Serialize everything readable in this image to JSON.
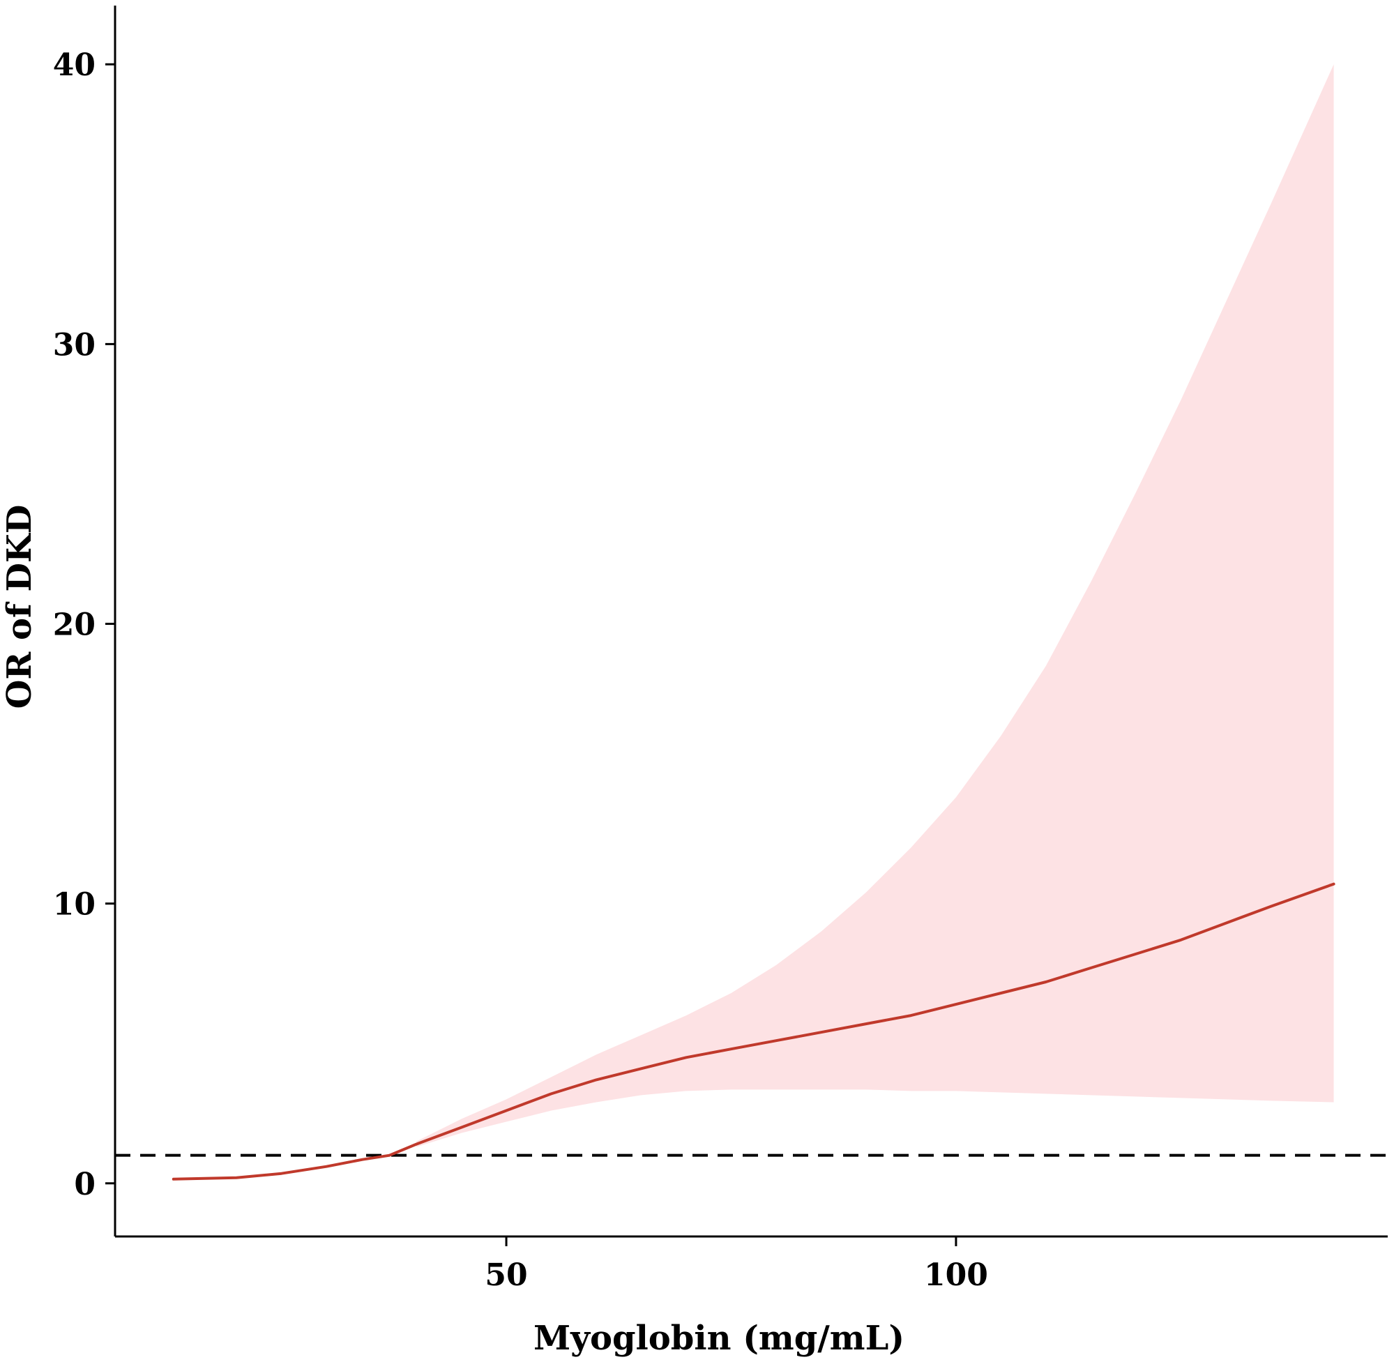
{
  "chart_data": {
    "type": "line",
    "xlabel": "Myoglobin (mg/mL)",
    "ylabel": "OR of DKD",
    "x_ticks": [
      50,
      100
    ],
    "y_ticks": [
      0,
      10,
      20,
      30,
      40
    ],
    "xlim": [
      6.5,
      148
    ],
    "ylim": [
      -1.9,
      42.1
    ],
    "grid": false,
    "legend": "none",
    "reference_line": {
      "y": 1,
      "style": "dashed",
      "color": "#000000"
    },
    "series": [
      {
        "x": [
          13,
          20,
          25,
          30,
          34,
          37,
          40,
          45,
          50,
          55,
          60,
          65,
          70,
          75,
          80,
          85,
          90,
          95,
          100,
          105,
          110,
          115,
          120,
          125,
          130,
          135,
          142
        ],
        "y": [
          0.15,
          0.2,
          0.35,
          0.6,
          0.85,
          1.0,
          1.4,
          2.0,
          2.6,
          3.2,
          3.7,
          4.1,
          4.5,
          4.8,
          5.1,
          5.4,
          5.7,
          6.0,
          6.4,
          6.8,
          7.2,
          7.7,
          8.2,
          8.7,
          9.3,
          9.9,
          10.7
        ],
        "color": "#c0392b"
      }
    ],
    "confidence_band": {
      "x": [
        40,
        45,
        50,
        55,
        60,
        65,
        70,
        75,
        80,
        85,
        90,
        95,
        100,
        105,
        110,
        115,
        120,
        125,
        130,
        135,
        142
      ],
      "lower": [
        1.3,
        1.8,
        2.2,
        2.6,
        2.9,
        3.15,
        3.3,
        3.35,
        3.35,
        3.35,
        3.35,
        3.3,
        3.3,
        3.25,
        3.2,
        3.15,
        3.1,
        3.05,
        3.0,
        2.95,
        2.9
      ],
      "upper": [
        1.5,
        2.3,
        3.0,
        3.8,
        4.6,
        5.3,
        6.0,
        6.8,
        7.8,
        9.0,
        10.4,
        12.0,
        13.8,
        16.0,
        18.5,
        21.5,
        24.7,
        28.0,
        31.5,
        35.0,
        40.0
      ],
      "color": "#fde2e4"
    }
  }
}
